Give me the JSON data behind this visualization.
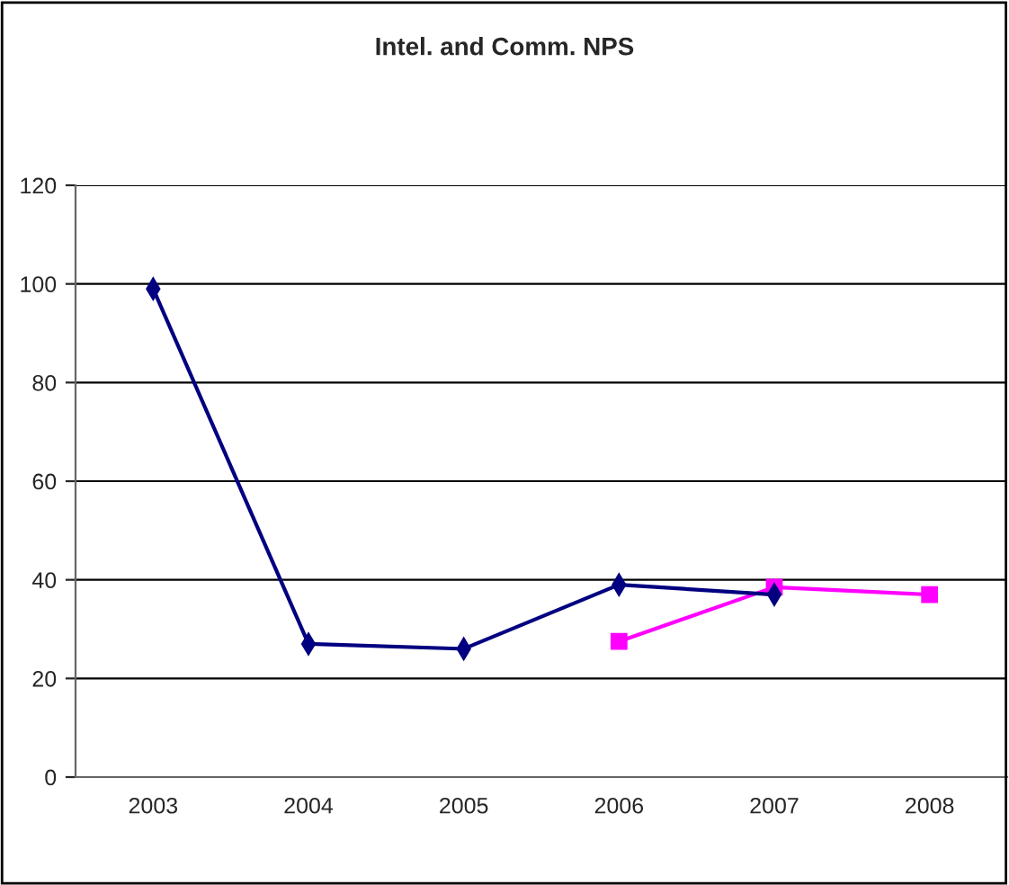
{
  "chart_data": {
    "type": "line",
    "title": "Intel. and Comm. NPS",
    "categories": [
      "2003",
      "2004",
      "2005",
      "2006",
      "2007",
      "2008"
    ],
    "series": [
      {
        "color": "#000080",
        "marker": "diamond",
        "values": [
          99,
          27,
          26,
          39,
          37,
          null
        ]
      },
      {
        "color": "#ff00ff",
        "marker": "square",
        "values": [
          null,
          null,
          null,
          27.5,
          38.5,
          37
        ]
      }
    ],
    "ylim": [
      0,
      120
    ],
    "yticks": [
      0,
      20,
      40,
      60,
      80,
      100,
      120
    ],
    "grid": "y",
    "legend": false
  }
}
